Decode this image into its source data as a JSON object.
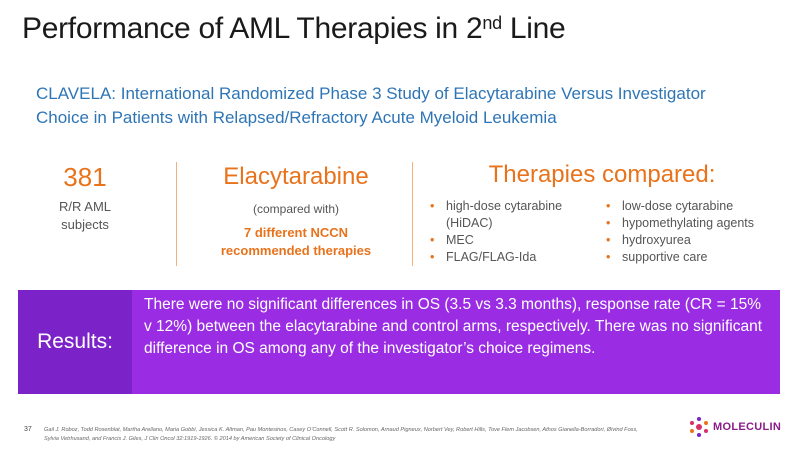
{
  "slide": {
    "title_main": "Performance of AML Therapies in 2",
    "title_sup": "nd",
    "title_end": " Line",
    "subtitle": "CLAVELA: International Randomized Phase 3 Study of Elacytarabine Versus Investigator Choice in Patients with Relapsed/Refractory Acute Myeloid Leukemia",
    "stat": {
      "value": "381",
      "label_line1": "R/R AML",
      "label_line2": "subjects"
    },
    "drug": {
      "name": "Elacytarabine",
      "compared": "(compared with)",
      "nccn_line1": "7 different NCCN",
      "nccn_line2": "recommended therapies"
    },
    "therapies": {
      "title": "Therapies compared:",
      "left": [
        "high-dose cytarabine (HiDAC)",
        "MEC",
        "FLAG/FLAG-Ida"
      ],
      "right": [
        "low-dose cytarabine",
        "hypomethylating agents",
        "hydroxyurea",
        "supportive care"
      ]
    },
    "results": {
      "label": "Results:",
      "text": "There were no significant differences in OS (3.5 vs 3.3 months), response rate (CR = 15% v 12%) between the elacytarabine and control arms, respectively. There was no significant difference in OS among any of the investigator’s choice regimens."
    },
    "page_number": "37",
    "references": "Gail J. Roboz, Todd Rosenblat, Martha Arellano, Maria Gobbi, Jessica K. Altman, Pau Montesinos, Casey O’Connell, Scott R. Solomon, Arnaud Pigneux, Norbert Vey, Robert Hills, Tove Flem Jacobsen, Athos Gianella-Borradori, Øivind Foss, Sylvia Vetrhusand, and Francis J. Giles, J Clin Oncol 32:1919-1926. © 2014 by American Society of Clinical Oncology",
    "logo_text": "MOLECULIN",
    "colors": {
      "accent_orange": "#e8731c",
      "subtitle_blue": "#2e75b6",
      "band_dark": "#7b22c9",
      "band_light": "#9a2ce3"
    }
  }
}
